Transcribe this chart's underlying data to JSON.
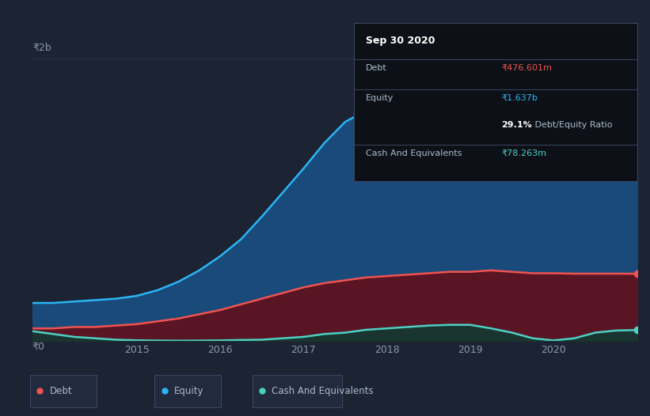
{
  "background_color": "#1c2333",
  "plot_bg_color": "#1c2333",
  "title": "Sep 30 2020",
  "tooltip": {
    "debt_label": "Debt",
    "debt_value": "₹476.601m",
    "equity_label": "Equity",
    "equity_value": "₹1.637b",
    "ratio_value": "29.1%",
    "ratio_label": " Debt/Equity Ratio",
    "cash_label": "Cash And Equivalents",
    "cash_value": "₹78.263m"
  },
  "years": [
    2013.75,
    2014.0,
    2014.25,
    2014.5,
    2014.75,
    2015.0,
    2015.25,
    2015.5,
    2015.75,
    2016.0,
    2016.25,
    2016.5,
    2016.75,
    2017.0,
    2017.25,
    2017.5,
    2017.75,
    2018.0,
    2018.25,
    2018.5,
    2018.75,
    2019.0,
    2019.25,
    2019.5,
    2019.75,
    2020.0,
    2020.25,
    2020.5,
    2020.75,
    2021.0
  ],
  "equity": [
    0.27,
    0.27,
    0.28,
    0.29,
    0.3,
    0.32,
    0.36,
    0.42,
    0.5,
    0.6,
    0.72,
    0.88,
    1.05,
    1.22,
    1.4,
    1.55,
    1.63,
    1.636,
    1.637,
    1.637,
    1.637,
    1.637,
    1.637,
    1.637,
    1.637,
    1.637,
    1.637,
    1.637,
    1.637,
    1.637
  ],
  "debt": [
    0.09,
    0.09,
    0.1,
    0.1,
    0.11,
    0.12,
    0.14,
    0.16,
    0.19,
    0.22,
    0.26,
    0.3,
    0.34,
    0.38,
    0.41,
    0.43,
    0.45,
    0.46,
    0.47,
    0.48,
    0.49,
    0.49,
    0.5,
    0.49,
    0.48,
    0.48,
    0.477,
    0.477,
    0.477,
    0.4766
  ],
  "cash": [
    0.07,
    0.05,
    0.03,
    0.02,
    0.01,
    0.006,
    0.004,
    0.003,
    0.004,
    0.005,
    0.008,
    0.01,
    0.02,
    0.03,
    0.05,
    0.06,
    0.08,
    0.09,
    0.1,
    0.11,
    0.115,
    0.115,
    0.09,
    0.06,
    0.02,
    0.005,
    0.02,
    0.06,
    0.075,
    0.07826
  ],
  "ylim": [
    0,
    2.0
  ],
  "ytick_pos": [
    0,
    2.0
  ],
  "ytick_labels": [
    "₹0",
    "₹2b"
  ],
  "xtick_years": [
    2015,
    2016,
    2017,
    2018,
    2019,
    2020
  ],
  "equity_line_color": "#29b6f6",
  "debt_line_color": "#ef5350",
  "cash_line_color": "#4dd0c4",
  "equity_fill_color": "#1a4a7a",
  "debt_fill_color": "#5a1525",
  "cash_fill_color": "#1a3530",
  "grid_color": "#2a3550",
  "tooltip_bg": "#0d1117",
  "tooltip_border": "#3a4560",
  "legend_bg": "#212b3d",
  "legend_border": "#3a4560"
}
